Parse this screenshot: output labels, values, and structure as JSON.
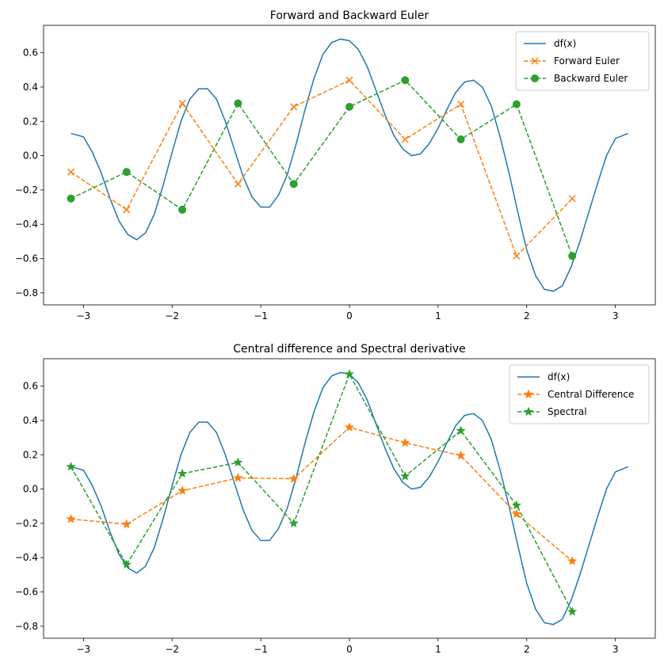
{
  "chart_data": [
    {
      "type": "line",
      "title": "Forward and Backward Euler",
      "xlabel": "",
      "ylabel": "",
      "xlim": [
        -3.45,
        3.45
      ],
      "ylim": [
        -0.87,
        0.76
      ],
      "xticks": [
        -3,
        -2,
        -1,
        0,
        1,
        2,
        3
      ],
      "yticks": [
        -0.8,
        -0.6,
        -0.4,
        -0.2,
        0.0,
        0.2,
        0.4,
        0.6
      ],
      "ytick_labels": [
        "−0.8",
        "−0.6",
        "−0.4",
        "−0.2",
        "0.0",
        "0.2",
        "0.4",
        "0.6"
      ],
      "xtick_labels": [
        "−3",
        "−2",
        "−1",
        "0",
        "1",
        "2",
        "3"
      ],
      "grid": false,
      "legend_position": "top-right",
      "series": [
        {
          "name": "df(x)",
          "style": "solid",
          "marker": "none",
          "color": "#1f77b4",
          "x": [
            -3.1416,
            -3.0,
            -2.9,
            -2.8,
            -2.7,
            -2.6,
            -2.5,
            -2.4,
            -2.3,
            -2.2,
            -2.1,
            -2.0,
            -1.9,
            -1.8,
            -1.7,
            -1.6,
            -1.5,
            -1.4,
            -1.3,
            -1.2,
            -1.1,
            -1.0,
            -0.9,
            -0.8,
            -0.7,
            -0.6,
            -0.5,
            -0.4,
            -0.3,
            -0.2,
            -0.1,
            0.0,
            0.1,
            0.2,
            0.3,
            0.4,
            0.5,
            0.6,
            0.7,
            0.8,
            0.9,
            1.0,
            1.1,
            1.2,
            1.3,
            1.4,
            1.5,
            1.6,
            1.7,
            1.8,
            1.9,
            2.0,
            2.1,
            2.2,
            2.3,
            2.4,
            2.5,
            2.6,
            2.7,
            2.8,
            2.9,
            3.0,
            3.1416
          ],
          "y": [
            0.13,
            0.11,
            0.02,
            -0.1,
            -0.25,
            -0.38,
            -0.46,
            -0.49,
            -0.45,
            -0.34,
            -0.17,
            0.02,
            0.2,
            0.33,
            0.39,
            0.39,
            0.33,
            0.2,
            0.04,
            -0.12,
            -0.24,
            -0.3,
            -0.3,
            -0.23,
            -0.11,
            0.07,
            0.27,
            0.45,
            0.59,
            0.66,
            0.68,
            0.67,
            0.62,
            0.52,
            0.38,
            0.24,
            0.12,
            0.04,
            0.0,
            0.01,
            0.07,
            0.16,
            0.27,
            0.37,
            0.43,
            0.44,
            0.4,
            0.29,
            0.11,
            -0.1,
            -0.33,
            -0.55,
            -0.7,
            -0.78,
            -0.79,
            -0.76,
            -0.65,
            -0.5,
            -0.33,
            -0.16,
            0.0,
            0.1,
            0.13
          ]
        },
        {
          "name": "Forward Euler",
          "style": "dashed",
          "marker": "x",
          "color": "#ff7f0e",
          "x": [
            -3.1416,
            -2.5133,
            -1.885,
            -1.2566,
            -0.6283,
            0.0,
            0.6283,
            1.2566,
            1.885,
            2.5133
          ],
          "y": [
            -0.095,
            -0.315,
            0.305,
            -0.165,
            0.285,
            0.44,
            0.095,
            0.3,
            -0.585,
            -0.25
          ]
        },
        {
          "name": "Backward Euler",
          "style": "dashed",
          "marker": "circle",
          "color": "#2ca02c",
          "x": [
            -3.1416,
            -2.5133,
            -1.885,
            -1.2566,
            -0.6283,
            0.0,
            0.6283,
            1.2566,
            1.885,
            2.5133
          ],
          "y": [
            -0.25,
            -0.095,
            -0.315,
            0.305,
            -0.165,
            0.285,
            0.44,
            0.095,
            0.3,
            -0.585
          ]
        }
      ]
    },
    {
      "type": "line",
      "title": "Central difference and Spectral derivative",
      "xlabel": "",
      "ylabel": "",
      "xlim": [
        -3.45,
        3.45
      ],
      "ylim": [
        -0.87,
        0.76
      ],
      "xticks": [
        -3,
        -2,
        -1,
        0,
        1,
        2,
        3
      ],
      "yticks": [
        -0.8,
        -0.6,
        -0.4,
        -0.2,
        0.0,
        0.2,
        0.4,
        0.6
      ],
      "ytick_labels": [
        "−0.8",
        "−0.6",
        "−0.4",
        "−0.2",
        "0.0",
        "0.2",
        "0.4",
        "0.6"
      ],
      "xtick_labels": [
        "−3",
        "−2",
        "−1",
        "0",
        "1",
        "2",
        "3"
      ],
      "grid": false,
      "legend_position": "top-right",
      "series": [
        {
          "name": "df(x)",
          "style": "solid",
          "marker": "none",
          "color": "#1f77b4",
          "x": [
            -3.1416,
            -3.0,
            -2.9,
            -2.8,
            -2.7,
            -2.6,
            -2.5,
            -2.4,
            -2.3,
            -2.2,
            -2.1,
            -2.0,
            -1.9,
            -1.8,
            -1.7,
            -1.6,
            -1.5,
            -1.4,
            -1.3,
            -1.2,
            -1.1,
            -1.0,
            -0.9,
            -0.8,
            -0.7,
            -0.6,
            -0.5,
            -0.4,
            -0.3,
            -0.2,
            -0.1,
            0.0,
            0.1,
            0.2,
            0.3,
            0.4,
            0.5,
            0.6,
            0.7,
            0.8,
            0.9,
            1.0,
            1.1,
            1.2,
            1.3,
            1.4,
            1.5,
            1.6,
            1.7,
            1.8,
            1.9,
            2.0,
            2.1,
            2.2,
            2.3,
            2.4,
            2.5,
            2.6,
            2.7,
            2.8,
            2.9,
            3.0,
            3.1416
          ],
          "y": [
            0.13,
            0.11,
            0.02,
            -0.1,
            -0.25,
            -0.38,
            -0.46,
            -0.49,
            -0.45,
            -0.34,
            -0.17,
            0.02,
            0.2,
            0.33,
            0.39,
            0.39,
            0.33,
            0.2,
            0.04,
            -0.12,
            -0.24,
            -0.3,
            -0.3,
            -0.23,
            -0.11,
            0.07,
            0.27,
            0.45,
            0.59,
            0.66,
            0.68,
            0.67,
            0.62,
            0.52,
            0.38,
            0.24,
            0.12,
            0.04,
            0.0,
            0.01,
            0.07,
            0.16,
            0.27,
            0.37,
            0.43,
            0.44,
            0.4,
            0.29,
            0.11,
            -0.1,
            -0.33,
            -0.55,
            -0.7,
            -0.78,
            -0.79,
            -0.76,
            -0.65,
            -0.5,
            -0.33,
            -0.16,
            0.0,
            0.1,
            0.13
          ]
        },
        {
          "name": "Central Difference",
          "style": "dashed",
          "marker": "star",
          "color": "#ff7f0e",
          "x": [
            -3.1416,
            -2.5133,
            -1.885,
            -1.2566,
            -0.6283,
            0.0,
            0.6283,
            1.2566,
            1.885,
            2.5133
          ],
          "y": [
            -0.175,
            -0.205,
            -0.01,
            0.065,
            0.06,
            0.36,
            0.27,
            0.195,
            -0.145,
            -0.42
          ]
        },
        {
          "name": "Spectral",
          "style": "dashed",
          "marker": "star",
          "color": "#2ca02c",
          "x": [
            -3.1416,
            -2.5133,
            -1.885,
            -1.2566,
            -0.6283,
            0.0,
            0.6283,
            1.2566,
            1.885,
            2.5133
          ],
          "y": [
            0.13,
            -0.44,
            0.09,
            0.155,
            -0.2,
            0.67,
            0.075,
            0.34,
            -0.095,
            -0.715
          ]
        }
      ]
    }
  ]
}
